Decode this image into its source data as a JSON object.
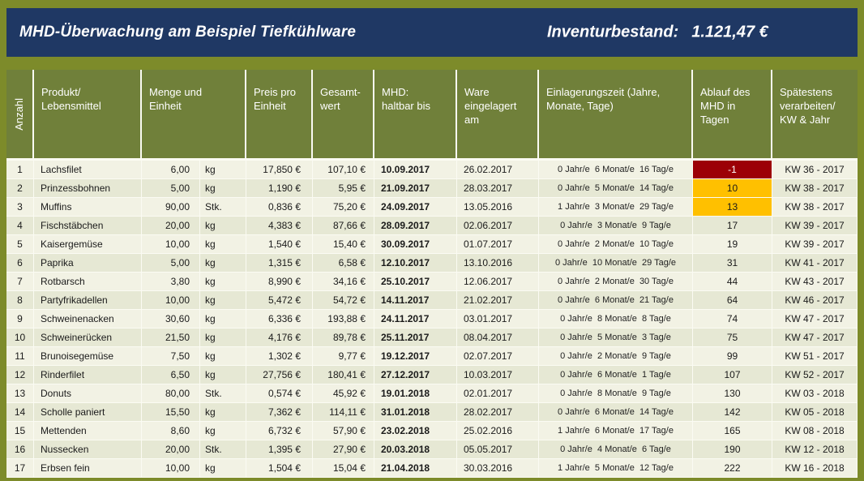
{
  "header": {
    "title": "MHD-Überwachung am Beispiel Tiefkühlware",
    "inventory_label": "Inventurbestand:",
    "inventory_value": "1.121,47 €"
  },
  "colors": {
    "navy": "#1f3864",
    "olive_frame": "#7d8b2a",
    "olive_header": "#70803a",
    "row_odd": "#f2f2e4",
    "row_even": "#e6e8d4",
    "danger": "#9c0006",
    "warning": "#ffc000"
  },
  "columns": {
    "anzahl": "Anzahl",
    "produkt": "Produkt/\nLebensmittel",
    "menge": "Menge und\nEinheit",
    "preis": "Preis pro\nEinheit",
    "gesamt": "Gesamt-\nwert",
    "mhd": "MHD:\nhaltbar bis",
    "ware": "Ware\neingelagert\nam",
    "zeit": "Einlagerungszeit (Jahre,\nMonate, Tage)",
    "ablauf": "Ablauf des\nMHD in\nTagen",
    "kw": "Spätestens\nverarbeiten/\nKW & Jahr"
  },
  "rows": [
    {
      "nr": "1",
      "produkt": "Lachsfilet",
      "menge": "6,00",
      "einheit": "kg",
      "preis": "17,850 €",
      "gesamt": "107,10 €",
      "mhd": "10.09.2017",
      "eingelagert": "26.02.2017",
      "zeit": "0 Jahr/e  6 Monat/e  16 Tag/e",
      "ablauf": "-1",
      "status": "danger",
      "kw": "KW 36 - 2017"
    },
    {
      "nr": "2",
      "produkt": "Prinzessbohnen",
      "menge": "5,00",
      "einheit": "kg",
      "preis": "1,190 €",
      "gesamt": "5,95 €",
      "mhd": "21.09.2017",
      "eingelagert": "28.03.2017",
      "zeit": "0 Jahr/e  5 Monat/e  14 Tag/e",
      "ablauf": "10",
      "status": "warning",
      "kw": "KW 38 - 2017"
    },
    {
      "nr": "3",
      "produkt": "Muffins",
      "menge": "90,00",
      "einheit": "Stk.",
      "preis": "0,836 €",
      "gesamt": "75,20 €",
      "mhd": "24.09.2017",
      "eingelagert": "13.05.2016",
      "zeit": "1 Jahr/e  3 Monat/e  29 Tag/e",
      "ablauf": "13",
      "status": "warning",
      "kw": "KW 38 - 2017"
    },
    {
      "nr": "4",
      "produkt": "Fischstäbchen",
      "menge": "20,00",
      "einheit": "kg",
      "preis": "4,383 €",
      "gesamt": "87,66 €",
      "mhd": "28.09.2017",
      "eingelagert": "02.06.2017",
      "zeit": "0 Jahr/e  3 Monat/e  9 Tag/e",
      "ablauf": "17",
      "kw": "KW 39 - 2017"
    },
    {
      "nr": "5",
      "produkt": "Kaisergemüse",
      "menge": "10,00",
      "einheit": "kg",
      "preis": "1,540 €",
      "gesamt": "15,40 €",
      "mhd": "30.09.2017",
      "eingelagert": "01.07.2017",
      "zeit": "0 Jahr/e  2 Monat/e  10 Tag/e",
      "ablauf": "19",
      "kw": "KW 39 - 2017"
    },
    {
      "nr": "6",
      "produkt": "Paprika",
      "menge": "5,00",
      "einheit": "kg",
      "preis": "1,315 €",
      "gesamt": "6,58 €",
      "mhd": "12.10.2017",
      "eingelagert": "13.10.2016",
      "zeit": "0 Jahr/e  10 Monat/e  29 Tag/e",
      "ablauf": "31",
      "kw": "KW 41 - 2017"
    },
    {
      "nr": "7",
      "produkt": "Rotbarsch",
      "menge": "3,80",
      "einheit": "kg",
      "preis": "8,990 €",
      "gesamt": "34,16 €",
      "mhd": "25.10.2017",
      "eingelagert": "12.06.2017",
      "zeit": "0 Jahr/e  2 Monat/e  30 Tag/e",
      "ablauf": "44",
      "kw": "KW 43 - 2017"
    },
    {
      "nr": "8",
      "produkt": "Partyfrikadellen",
      "menge": "10,00",
      "einheit": "kg",
      "preis": "5,472 €",
      "gesamt": "54,72 €",
      "mhd": "14.11.2017",
      "eingelagert": "21.02.2017",
      "zeit": "0 Jahr/e  6 Monat/e  21 Tag/e",
      "ablauf": "64",
      "kw": "KW 46 - 2017"
    },
    {
      "nr": "9",
      "produkt": "Schweinenacken",
      "menge": "30,60",
      "einheit": "kg",
      "preis": "6,336 €",
      "gesamt": "193,88 €",
      "mhd": "24.11.2017",
      "eingelagert": "03.01.2017",
      "zeit": "0 Jahr/e  8 Monat/e  8 Tag/e",
      "ablauf": "74",
      "kw": "KW 47 - 2017"
    },
    {
      "nr": "10",
      "produkt": "Schweinerücken",
      "menge": "21,50",
      "einheit": "kg",
      "preis": "4,176 €",
      "gesamt": "89,78 €",
      "mhd": "25.11.2017",
      "eingelagert": "08.04.2017",
      "zeit": "0 Jahr/e  5 Monat/e  3 Tag/e",
      "ablauf": "75",
      "kw": "KW 47 - 2017"
    },
    {
      "nr": "11",
      "produkt": "Brunoisegemüse",
      "menge": "7,50",
      "einheit": "kg",
      "preis": "1,302 €",
      "gesamt": "9,77 €",
      "mhd": "19.12.2017",
      "eingelagert": "02.07.2017",
      "zeit": "0 Jahr/e  2 Monat/e  9 Tag/e",
      "ablauf": "99",
      "kw": "KW 51 - 2017"
    },
    {
      "nr": "12",
      "produkt": "Rinderfilet",
      "menge": "6,50",
      "einheit": "kg",
      "preis": "27,756 €",
      "gesamt": "180,41 €",
      "mhd": "27.12.2017",
      "eingelagert": "10.03.2017",
      "zeit": "0 Jahr/e  6 Monat/e  1 Tag/e",
      "ablauf": "107",
      "kw": "KW 52 - 2017"
    },
    {
      "nr": "13",
      "produkt": "Donuts",
      "menge": "80,00",
      "einheit": "Stk.",
      "preis": "0,574 €",
      "gesamt": "45,92 €",
      "mhd": "19.01.2018",
      "eingelagert": "02.01.2017",
      "zeit": "0 Jahr/e  8 Monat/e  9 Tag/e",
      "ablauf": "130",
      "kw": "KW 03 - 2018"
    },
    {
      "nr": "14",
      "produkt": "Scholle paniert",
      "menge": "15,50",
      "einheit": "kg",
      "preis": "7,362 €",
      "gesamt": "114,11 €",
      "mhd": "31.01.2018",
      "eingelagert": "28.02.2017",
      "zeit": "0 Jahr/e  6 Monat/e  14 Tag/e",
      "ablauf": "142",
      "kw": "KW 05 - 2018"
    },
    {
      "nr": "15",
      "produkt": "Mettenden",
      "menge": "8,60",
      "einheit": "kg",
      "preis": "6,732 €",
      "gesamt": "57,90 €",
      "mhd": "23.02.2018",
      "eingelagert": "25.02.2016",
      "zeit": "1 Jahr/e  6 Monat/e  17 Tag/e",
      "ablauf": "165",
      "kw": "KW 08 - 2018"
    },
    {
      "nr": "16",
      "produkt": "Nussecken",
      "menge": "20,00",
      "einheit": "Stk.",
      "preis": "1,395 €",
      "gesamt": "27,90 €",
      "mhd": "20.03.2018",
      "eingelagert": "05.05.2017",
      "zeit": "0 Jahr/e  4 Monat/e  6 Tag/e",
      "ablauf": "190",
      "kw": "KW 12 - 2018"
    },
    {
      "nr": "17",
      "produkt": "Erbsen fein",
      "menge": "10,00",
      "einheit": "kg",
      "preis": "1,504 €",
      "gesamt": "15,04 €",
      "mhd": "21.04.2018",
      "eingelagert": "30.03.2016",
      "zeit": "1 Jahr/e  5 Monat/e  12 Tag/e",
      "ablauf": "222",
      "kw": "KW 16 - 2018"
    }
  ]
}
